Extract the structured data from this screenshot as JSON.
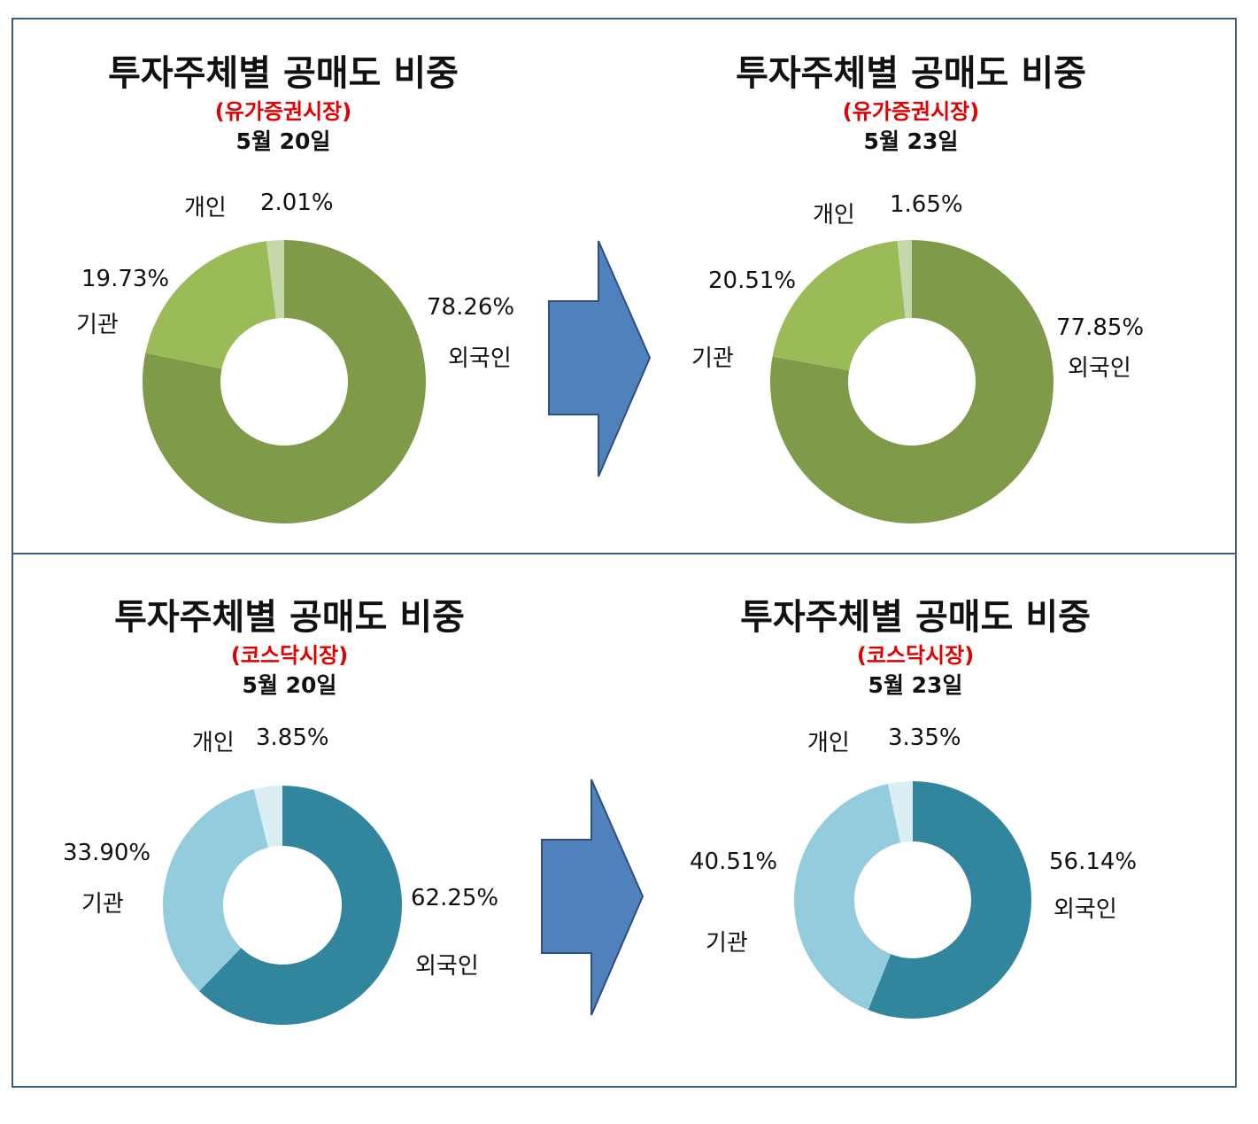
{
  "chart_data": [
    {
      "type": "pie",
      "title": "투자주체별 공매도 비중",
      "subtitle": "(유가증권시장)",
      "date": "5월 20일",
      "categories": [
        "외국인",
        "기관",
        "개인"
      ],
      "values": [
        78.26,
        19.73,
        2.01
      ],
      "value_labels": [
        "78.26%",
        "19.73%",
        "2.01%"
      ],
      "colors": [
        "#7f9a48",
        "#9bbb59",
        "#c6d8aa"
      ]
    },
    {
      "type": "pie",
      "title": "투자주체별 공매도 비중",
      "subtitle": "(유가증권시장)",
      "date": "5월 23일",
      "categories": [
        "외국인",
        "기관",
        "개인"
      ],
      "values": [
        77.85,
        20.51,
        1.65
      ],
      "value_labels": [
        "77.85%",
        "20.51%",
        "1.65%"
      ],
      "colors": [
        "#7f9a48",
        "#9bbb59",
        "#c6d8aa"
      ]
    },
    {
      "type": "pie",
      "title": "투자주체별 공매도 비중",
      "subtitle": "(코스닥시장)",
      "date": "5월 20일",
      "categories": [
        "외국인",
        "기관",
        "개인"
      ],
      "values": [
        62.25,
        33.9,
        3.85
      ],
      "value_labels": [
        "62.25%",
        "33.90%",
        "3.85%"
      ],
      "colors": [
        "#31859c",
        "#93cddd",
        "#dbeef4"
      ]
    },
    {
      "type": "pie",
      "title": "투자주체별 공매도 비중",
      "subtitle": "(코스닥시장)",
      "date": "5월 23일",
      "categories": [
        "외국인",
        "기관",
        "개인"
      ],
      "values": [
        56.14,
        40.51,
        3.35
      ],
      "value_labels": [
        "56.14%",
        "40.51%",
        "3.35%"
      ],
      "colors": [
        "#31859c",
        "#93cddd",
        "#dbeef4"
      ]
    }
  ],
  "arrow_color": "#4f81bd"
}
